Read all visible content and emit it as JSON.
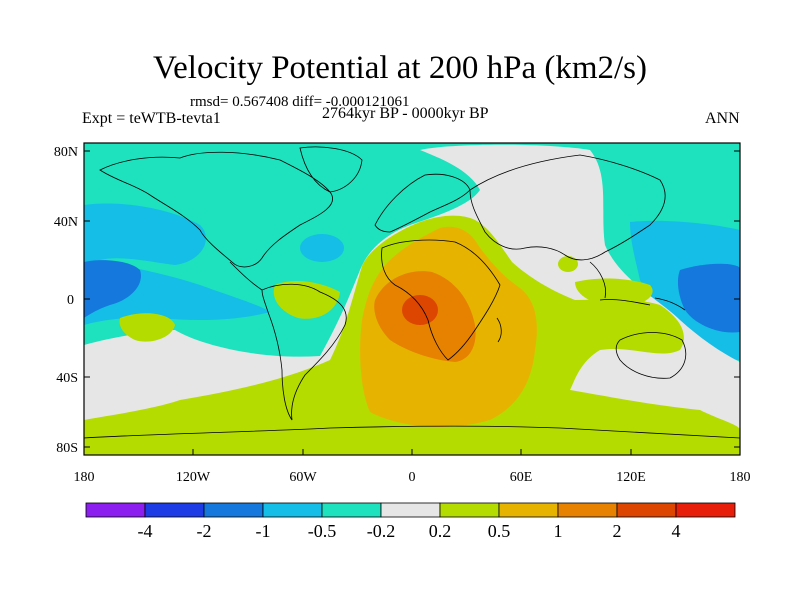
{
  "title": "Velocity Potential at 200 hPa (km2/s)",
  "stats": "rmsd= 0.567408 diff= -0.000121061",
  "left_label": "Expt = teWTB-tevta1",
  "center_label": "2764kyr BP - 0000kyr BP",
  "right_label": "ANN",
  "lat_ticks": [
    "80N",
    "40N",
    "0",
    "40S",
    "80S"
  ],
  "lon_ticks": [
    "180",
    "120W",
    "60W",
    "0",
    "60E",
    "120E",
    "180"
  ],
  "colorbar": {
    "colors": [
      "#8c1ef0",
      "#1e3ce6",
      "#1478dc",
      "#14bee6",
      "#1ee1be",
      "#e6e6e6",
      "#b4dc00",
      "#e6b400",
      "#e68200",
      "#dc4600",
      "#e61e0a"
    ],
    "labels": [
      "-4",
      "-2",
      "-1",
      "-0.5",
      "-0.2",
      "0.2",
      "0.5",
      "1",
      "2",
      "4"
    ]
  },
  "palette": {
    "neg_04": "#1ee1be",
    "neg_1": "#14bee6",
    "neg_2": "#1478dc",
    "pos_0": "#e6e6e6",
    "pos_05": "#b4dc00",
    "pos_1": "#e6b400",
    "pos_2": "#e68200",
    "pos_4": "#dc4600"
  }
}
